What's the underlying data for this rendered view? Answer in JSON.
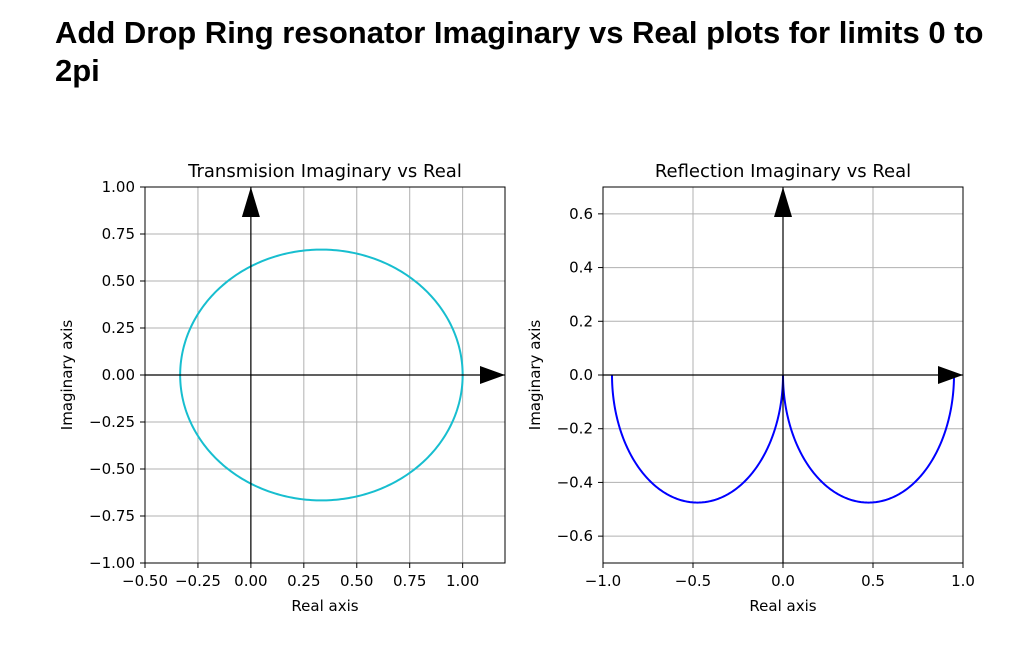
{
  "page": {
    "title": "Add Drop Ring resonator Imaginary vs Real plots for limits 0 to 2pi"
  },
  "chart_data": [
    {
      "type": "line",
      "title": "Transmision Imaginary vs Real",
      "xlabel": "Real axis",
      "ylabel": "Imaginary axis",
      "xlim": [
        -0.5,
        1.2
      ],
      "ylim": [
        -1.0,
        1.0
      ],
      "xticks": [
        -0.5,
        -0.25,
        0.0,
        0.25,
        0.5,
        0.75,
        1.0
      ],
      "xtick_labels": [
        "−0.50",
        "−0.25",
        "0.00",
        "0.25",
        "0.50",
        "0.75",
        "1.00"
      ],
      "yticks": [
        -1.0,
        -0.75,
        -0.5,
        -0.25,
        0.0,
        0.25,
        0.5,
        0.75,
        1.0
      ],
      "ytick_labels": [
        "−1.00",
        "−0.75",
        "−0.50",
        "−0.25",
        "0.00",
        "0.25",
        "0.50",
        "0.75",
        "1.00"
      ],
      "grid": true,
      "series": [
        {
          "curve": "ellipse",
          "center": [
            0.333,
            0.0
          ],
          "radius_x": 0.667,
          "radius_y": 0.667,
          "color": "#17becf"
        }
      ],
      "arrows": {
        "x_axis": true,
        "y_axis": true,
        "color": "#000000"
      }
    },
    {
      "type": "line",
      "title": "Reflection Imaginary vs Real",
      "xlabel": "Real axis",
      "ylabel": "Imaginary axis",
      "xlim": [
        -1.0,
        1.0
      ],
      "ylim": [
        -0.7,
        0.7
      ],
      "xticks": [
        -1.0,
        -0.5,
        0.0,
        0.5,
        1.0
      ],
      "xtick_labels": [
        "−1.0",
        "−0.5",
        "0.0",
        "0.5",
        "1.0"
      ],
      "yticks": [
        -0.6,
        -0.4,
        -0.2,
        0.0,
        0.2,
        0.4,
        0.6
      ],
      "ytick_labels": [
        "−0.6",
        "−0.4",
        "−0.2",
        "0.0",
        "0.2",
        "0.4",
        "0.6"
      ],
      "grid": true,
      "series": [
        {
          "curve": "lower-semicircle",
          "center": [
            -0.475,
            0.0
          ],
          "radius": 0.475,
          "color": "#0000ff"
        },
        {
          "curve": "lower-semicircle",
          "center": [
            0.475,
            0.0
          ],
          "radius": 0.475,
          "color": "#0000ff"
        }
      ],
      "arrows": {
        "x_axis": true,
        "y_axis": true,
        "color": "#000000"
      }
    }
  ]
}
